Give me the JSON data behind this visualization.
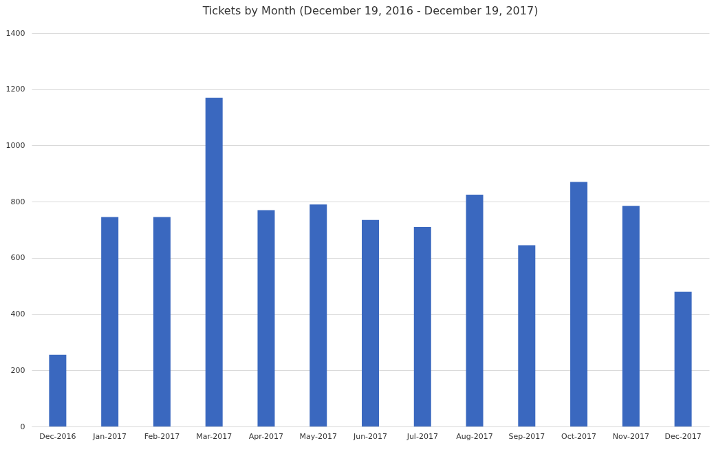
{
  "chart_data": {
    "type": "bar",
    "title": "Tickets by Month (December 19, 2016 - December 19, 2017)",
    "categories": [
      "Dec-2016",
      "Jan-2017",
      "Feb-2017",
      "Mar-2017",
      "Apr-2017",
      "May-2017",
      "Jun-2017",
      "Jul-2017",
      "Aug-2017",
      "Sep-2017",
      "Oct-2017",
      "Nov-2017",
      "Dec-2017"
    ],
    "values": [
      255,
      745,
      745,
      1170,
      770,
      790,
      735,
      710,
      825,
      645,
      870,
      785,
      480
    ],
    "color": "#3a68bf",
    "ylim": [
      0,
      1400
    ],
    "yticks": [
      0,
      200,
      400,
      600,
      800,
      1000,
      1200,
      1400
    ],
    "grid": "y"
  }
}
